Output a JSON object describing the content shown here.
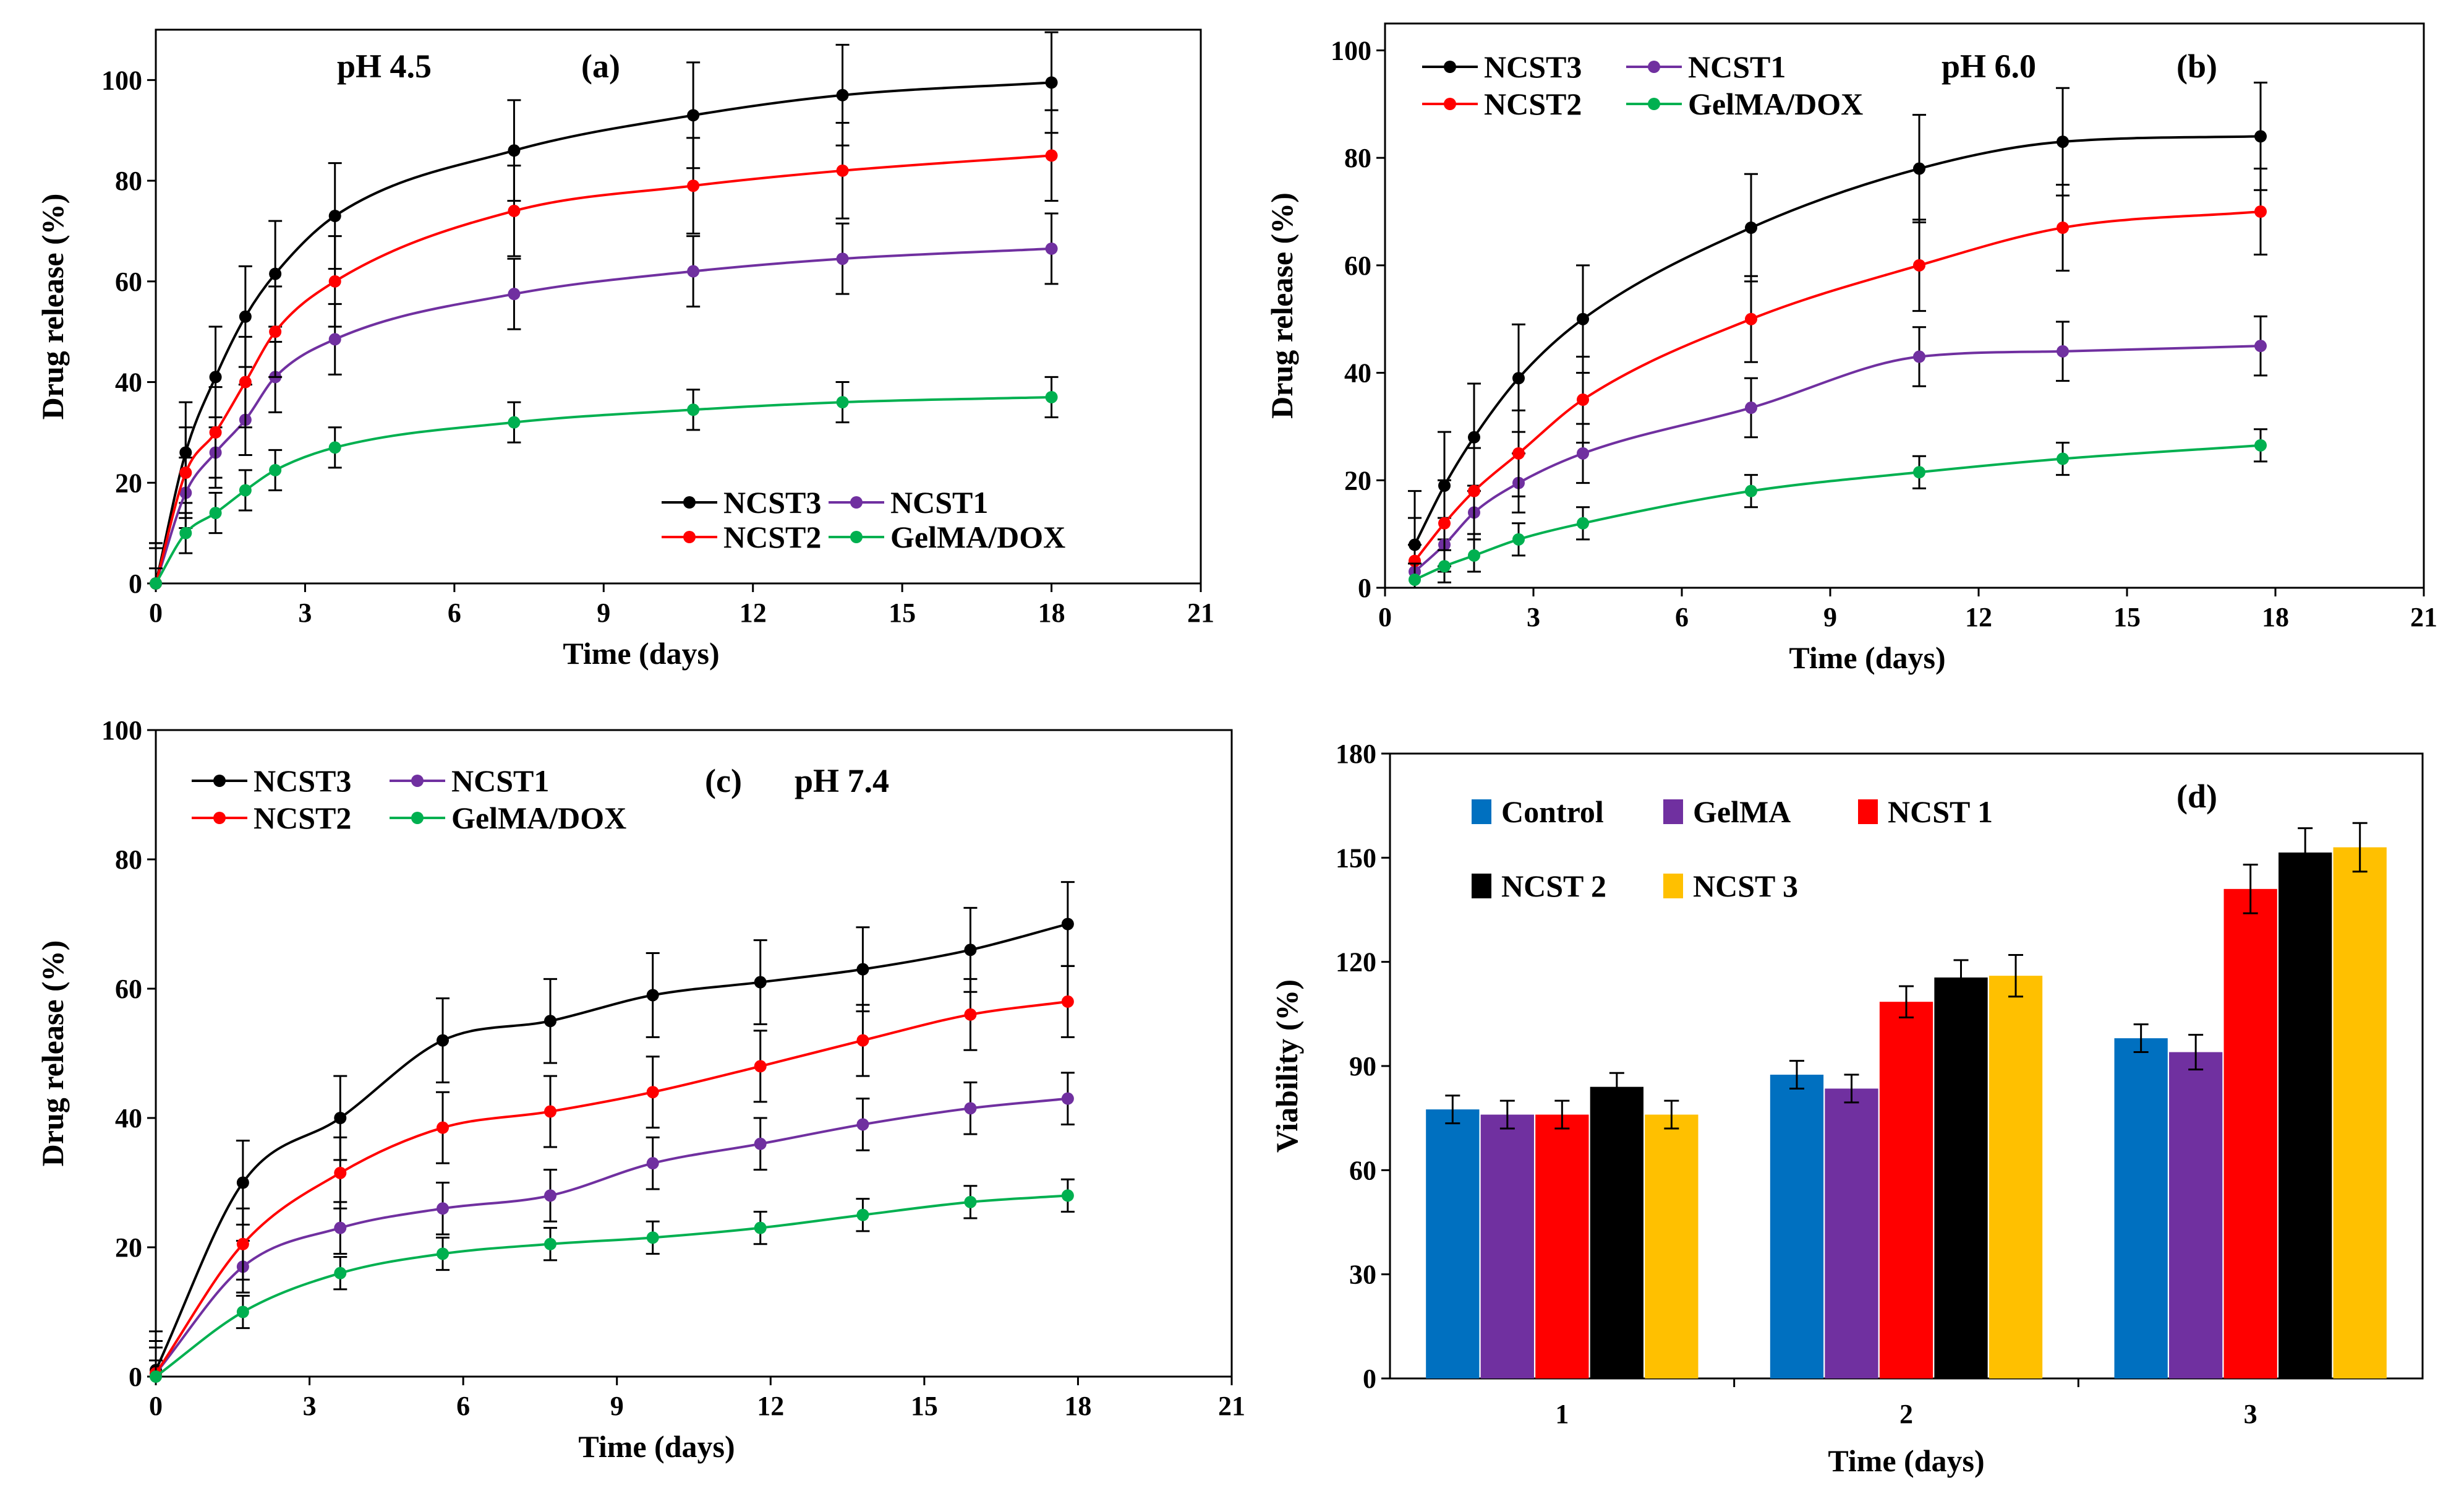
{
  "chart_data": [
    {
      "id": "a",
      "type": "line",
      "panel_label": "(a)",
      "condition": "pH 4.5",
      "xlabel": "Time (days)",
      "ylabel": "Drug release (%)",
      "xlim": [
        0,
        21
      ],
      "ylim": [
        0,
        110
      ],
      "xticks": [
        0,
        3,
        6,
        9,
        12,
        15,
        18,
        21
      ],
      "yticks": [
        0,
        20,
        40,
        60,
        80,
        100
      ],
      "legend_position": "bottom-right",
      "series": [
        {
          "name": "NCST3",
          "color": "#000000",
          "x": [
            0,
            0.6,
            1.2,
            1.8,
            2.4,
            3.6,
            7.2,
            10.8,
            13.8,
            18
          ],
          "values": [
            0,
            26,
            41,
            53,
            61.5,
            73,
            86,
            93,
            97,
            99.5
          ],
          "errors": [
            8,
            10,
            10,
            10,
            10.5,
            10.5,
            10,
            10.5,
            10,
            10
          ]
        },
        {
          "name": "NCST1",
          "color": "#7030a0",
          "x": [
            0,
            0.6,
            1.2,
            1.8,
            2.4,
            3.6,
            7.2,
            10.8,
            13.8,
            18
          ],
          "values": [
            0,
            18,
            26,
            32.5,
            41,
            48.5,
            57.5,
            62,
            64.5,
            66.5
          ],
          "errors": [
            7,
            7,
            7,
            7,
            7,
            7,
            7,
            7,
            7,
            7
          ]
        },
        {
          "name": "NCST2",
          "color": "#ff0000",
          "x": [
            0,
            0.6,
            1.2,
            1.8,
            2.4,
            3.6,
            7.2,
            10.8,
            13.8,
            18
          ],
          "values": [
            0,
            22,
            30,
            40,
            50,
            60,
            74,
            79,
            82,
            85
          ],
          "errors": [
            8,
            9,
            9,
            9,
            9,
            9,
            9,
            9.5,
            9.5,
            9
          ]
        },
        {
          "name": "GelMA/DOX",
          "color": "#00b050",
          "x": [
            0,
            0.6,
            1.2,
            1.8,
            2.4,
            3.6,
            7.2,
            10.8,
            13.8,
            18
          ],
          "values": [
            0,
            10,
            14,
            18.5,
            22.5,
            27,
            32,
            34.5,
            36,
            37
          ],
          "errors": [
            3,
            4,
            4,
            4,
            4,
            4,
            4,
            4,
            4,
            4
          ]
        }
      ]
    },
    {
      "id": "b",
      "type": "line",
      "panel_label": "(b)",
      "condition": "pH 6.0",
      "xlabel": "Time (days)",
      "ylabel": "Drug release (%)",
      "xlim": [
        0,
        21
      ],
      "ylim": [
        0,
        105
      ],
      "xticks": [
        0,
        3,
        6,
        9,
        12,
        15,
        18,
        21
      ],
      "yticks": [
        0,
        20,
        40,
        60,
        80,
        100
      ],
      "legend_position": "top-left",
      "series": [
        {
          "name": "NCST3",
          "color": "#000000",
          "x": [
            0.6,
            1.2,
            1.8,
            2.7,
            4.0,
            7.4,
            10.8,
            13.7,
            17.7
          ],
          "values": [
            8,
            19,
            28,
            39,
            50,
            67,
            78,
            83,
            84
          ],
          "errors": [
            10,
            10,
            10,
            10,
            10,
            10,
            10,
            10,
            10
          ]
        },
        {
          "name": "NCST1",
          "color": "#7030a0",
          "x": [
            0.6,
            1.2,
            1.8,
            2.7,
            4.0,
            7.4,
            10.8,
            13.7,
            17.7
          ],
          "values": [
            3,
            8,
            14,
            19.5,
            25,
            33.5,
            43,
            44,
            45
          ],
          "errors": [
            5,
            5,
            5,
            5.5,
            5.5,
            5.5,
            5.5,
            5.5,
            5.5
          ]
        },
        {
          "name": "NCST2",
          "color": "#ff0000",
          "x": [
            0.6,
            1.2,
            1.8,
            2.7,
            4.0,
            7.4,
            10.8,
            13.7,
            17.7
          ],
          "values": [
            5,
            12,
            18,
            25,
            35,
            50,
            60,
            67,
            70
          ],
          "errors": [
            8,
            8,
            8,
            8,
            8,
            8,
            8.5,
            8,
            8
          ]
        },
        {
          "name": "GelMA/DOX",
          "color": "#00b050",
          "x": [
            0.6,
            1.2,
            1.8,
            2.7,
            4.0,
            7.4,
            10.8,
            13.7,
            17.7
          ],
          "values": [
            1.5,
            4,
            6,
            9,
            12,
            18,
            21.5,
            24,
            26.5
          ],
          "errors": [
            3,
            3,
            3,
            3,
            3,
            3,
            3,
            3,
            3
          ]
        }
      ]
    },
    {
      "id": "c",
      "type": "line",
      "panel_label": "(c)",
      "condition": "pH 7.4",
      "xlabel": "Time (days)",
      "ylabel": "Drug release (%)",
      "xlim": [
        0,
        21
      ],
      "ylim": [
        0,
        100
      ],
      "xticks": [
        0,
        3,
        6,
        9,
        12,
        15,
        18,
        21
      ],
      "yticks": [
        0,
        20,
        40,
        60,
        80,
        100
      ],
      "legend_position": "top-left",
      "series": [
        {
          "name": "NCST3",
          "color": "#000000",
          "x": [
            0,
            1.7,
            3.6,
            5.6,
            7.7,
            9.7,
            11.8,
            13.8,
            15.9,
            17.8
          ],
          "values": [
            1,
            30,
            40,
            52,
            55,
            59,
            61,
            63,
            66,
            70
          ],
          "errors": [
            6,
            6.5,
            6.5,
            6.5,
            6.5,
            6.5,
            6.5,
            6.5,
            6.5,
            6.5
          ]
        },
        {
          "name": "NCST1",
          "color": "#7030a0",
          "x": [
            0,
            1.7,
            3.6,
            5.6,
            7.7,
            9.7,
            11.8,
            13.8,
            15.9,
            17.8
          ],
          "values": [
            0.5,
            17,
            23,
            26,
            28,
            33,
            36,
            39,
            41.5,
            43
          ],
          "errors": [
            4,
            4,
            4,
            4,
            4,
            4,
            4,
            4,
            4,
            4
          ]
        },
        {
          "name": "NCST2",
          "color": "#ff0000",
          "x": [
            0,
            1.7,
            3.6,
            5.6,
            7.7,
            9.7,
            11.8,
            13.8,
            15.9,
            17.8
          ],
          "values": [
            0.5,
            20.5,
            31.5,
            38.5,
            41,
            44,
            48,
            52,
            56,
            58
          ],
          "errors": [
            5,
            5.5,
            5.5,
            5.5,
            5.5,
            5.5,
            5.5,
            5.5,
            5.5,
            5.5
          ]
        },
        {
          "name": "GelMA/DOX",
          "color": "#00b050",
          "x": [
            0,
            1.7,
            3.6,
            5.6,
            7.7,
            9.7,
            11.8,
            13.8,
            15.9,
            17.8
          ],
          "values": [
            0,
            10,
            16,
            19,
            20.5,
            21.5,
            23,
            25,
            27,
            28
          ],
          "errors": [
            2.5,
            2.5,
            2.5,
            2.5,
            2.5,
            2.5,
            2.5,
            2.5,
            2.5,
            2.5
          ]
        }
      ]
    },
    {
      "id": "d",
      "type": "bar",
      "panel_label": "(d)",
      "xlabel": "Time (days)",
      "ylabel": "Viability  (%)",
      "ylim": [
        0,
        180
      ],
      "yticks": [
        0,
        30,
        60,
        90,
        120,
        150,
        180
      ],
      "categories": [
        "1",
        "2",
        "3"
      ],
      "legend_position": "top-left",
      "series": [
        {
          "name": "Control",
          "color": "#0070c0",
          "values": [
            77.5,
            87.5,
            98
          ],
          "errors": [
            4,
            4,
            4
          ]
        },
        {
          "name": "GelMA",
          "color": "#7030a0",
          "values": [
            76,
            83.5,
            94
          ],
          "errors": [
            4,
            4,
            5
          ]
        },
        {
          "name": "NCST 1",
          "color": "#ff0000",
          "values": [
            76,
            108.5,
            141
          ],
          "errors": [
            4,
            4.5,
            7
          ]
        },
        {
          "name": "NCST 2",
          "color": "#000000",
          "values": [
            84,
            115.5,
            151.5
          ],
          "errors": [
            4,
            5,
            7
          ]
        },
        {
          "name": "NCST 3",
          "color": "#ffc000",
          "values": [
            76,
            116,
            153
          ],
          "errors": [
            4,
            6,
            7
          ]
        }
      ]
    }
  ]
}
